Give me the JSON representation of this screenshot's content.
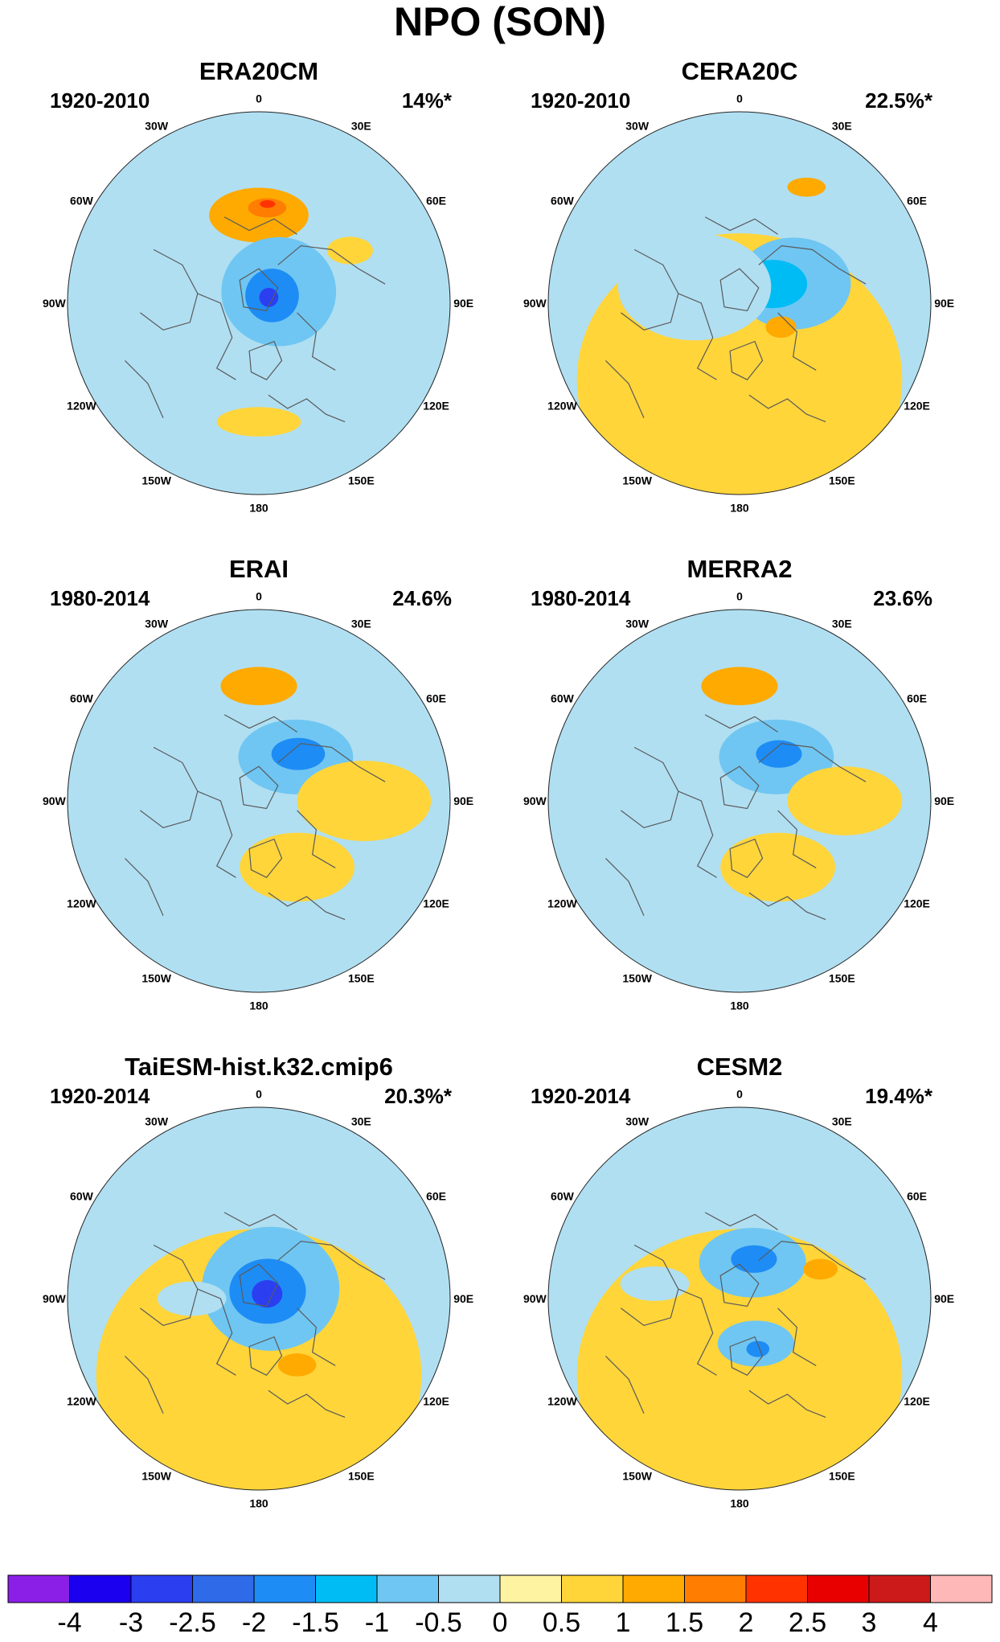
{
  "figure": {
    "title": "NPO (SON)"
  },
  "longitude_labels": [
    "180",
    "150E",
    "120E",
    "90E",
    "60E",
    "30E",
    "0",
    "30W",
    "60W",
    "90W",
    "120W",
    "150W"
  ],
  "colors": {
    "coast": "#5a5a5a",
    "outline": "#222222"
  },
  "panels": [
    {
      "title": "ERA20CM",
      "period": "1920-2010",
      "variance": "14%*",
      "features": [
        {
          "lon": 180,
          "r": 0.46,
          "level": 2,
          "size": 0.26,
          "ratio": 0.55
        },
        {
          "lon": 175,
          "r": 0.5,
          "level": 3,
          "size": 0.1,
          "ratio": 0.5
        },
        {
          "lon": 175,
          "r": 0.52,
          "level": 4,
          "size": 0.04,
          "ratio": 0.5
        },
        {
          "lon": 120,
          "r": 0.12,
          "level": -2,
          "size": 0.3,
          "ratio": 0.95
        },
        {
          "lon": 120,
          "r": 0.08,
          "level": -4,
          "size": 0.14,
          "ratio": 1.0
        },
        {
          "lon": 120,
          "r": 0.06,
          "level": -6,
          "size": 0.05,
          "ratio": 1.0
        },
        {
          "lon": 0,
          "r": 0.62,
          "level": 1,
          "size": 0.22,
          "ratio": 0.35
        },
        {
          "lon": 120,
          "r": 0.55,
          "level": 1,
          "size": 0.12,
          "ratio": 0.6
        }
      ]
    },
    {
      "title": "CERA20C",
      "period": "1920-2010",
      "variance": "22.5%*",
      "features": [
        {
          "lon": 0,
          "r": 0.4,
          "level": 1,
          "size": 0.85,
          "ratio": 0.9
        },
        {
          "lon": 150,
          "r": 0.7,
          "level": 2,
          "size": 0.1,
          "ratio": 0.5
        },
        {
          "lon": 110,
          "r": 0.3,
          "level": -2,
          "size": 0.3,
          "ratio": 0.8
        },
        {
          "lon": 120,
          "r": 0.2,
          "level": -3,
          "size": 0.18,
          "ratio": 0.7
        },
        {
          "lon": 60,
          "r": 0.25,
          "level": 2,
          "size": 0.08,
          "ratio": 0.7
        },
        {
          "lon": 250,
          "r": 0.25,
          "level": -1,
          "size": 0.4,
          "ratio": 0.7
        }
      ]
    },
    {
      "title": "ERAI",
      "period": "1980-2014",
      "variance": "24.6%",
      "features": [
        {
          "lon": 180,
          "r": 0.6,
          "level": 2,
          "size": 0.2,
          "ratio": 0.5
        },
        {
          "lon": 140,
          "r": 0.3,
          "level": -2,
          "size": 0.3,
          "ratio": 0.65
        },
        {
          "lon": 140,
          "r": 0.32,
          "level": -4,
          "size": 0.14,
          "ratio": 0.6
        },
        {
          "lon": 20,
          "r": 0.35,
          "level": 2,
          "size": 0.1,
          "ratio": 0.8
        },
        {
          "lon": 30,
          "r": 0.4,
          "level": 1,
          "size": 0.3,
          "ratio": 0.6
        },
        {
          "lon": 90,
          "r": 0.55,
          "level": 1,
          "size": 0.35,
          "ratio": 0.6
        }
      ]
    },
    {
      "title": "MERRA2",
      "period": "1980-2014",
      "variance": "23.6%",
      "features": [
        {
          "lon": 180,
          "r": 0.6,
          "level": 2,
          "size": 0.2,
          "ratio": 0.5
        },
        {
          "lon": 140,
          "r": 0.3,
          "level": -2,
          "size": 0.3,
          "ratio": 0.65
        },
        {
          "lon": 140,
          "r": 0.32,
          "level": -4,
          "size": 0.12,
          "ratio": 0.6
        },
        {
          "lon": 20,
          "r": 0.35,
          "level": 2,
          "size": 0.1,
          "ratio": 0.8
        },
        {
          "lon": 30,
          "r": 0.4,
          "level": 1,
          "size": 0.3,
          "ratio": 0.6
        },
        {
          "lon": 90,
          "r": 0.45,
          "level": 2,
          "size": 0.06,
          "ratio": 0.6
        },
        {
          "lon": 90,
          "r": 0.55,
          "level": 1,
          "size": 0.3,
          "ratio": 0.6
        }
      ]
    },
    {
      "title": "TaiESM-hist.k32.cmip6",
      "period": "1920-2014",
      "variance": "20.3%*",
      "features": [
        {
          "lon": 0,
          "r": 0.4,
          "level": 1,
          "size": 0.85,
          "ratio": 0.9
        },
        {
          "lon": 130,
          "r": 0.08,
          "level": -2,
          "size": 0.36,
          "ratio": 0.9
        },
        {
          "lon": 130,
          "r": 0.06,
          "level": -4,
          "size": 0.2,
          "ratio": 0.85
        },
        {
          "lon": 120,
          "r": 0.05,
          "level": -6,
          "size": 0.08,
          "ratio": 0.9
        },
        {
          "lon": 30,
          "r": 0.4,
          "level": 2,
          "size": 0.1,
          "ratio": 0.6
        },
        {
          "lon": 270,
          "r": 0.35,
          "level": -1,
          "size": 0.18,
          "ratio": 0.5
        }
      ]
    },
    {
      "title": "CESM2",
      "period": "1920-2014",
      "variance": "19.4%*",
      "features": [
        {
          "lon": 0,
          "r": 0.4,
          "level": 1,
          "size": 0.85,
          "ratio": 0.9
        },
        {
          "lon": 160,
          "r": 0.2,
          "level": -2,
          "size": 0.28,
          "ratio": 0.65
        },
        {
          "lon": 160,
          "r": 0.22,
          "level": -4,
          "size": 0.12,
          "ratio": 0.6
        },
        {
          "lon": 20,
          "r": 0.25,
          "level": -2,
          "size": 0.2,
          "ratio": 0.6
        },
        {
          "lon": 20,
          "r": 0.28,
          "level": -4,
          "size": 0.06,
          "ratio": 0.7
        },
        {
          "lon": 110,
          "r": 0.45,
          "level": 2,
          "size": 0.09,
          "ratio": 0.6
        },
        {
          "lon": 260,
          "r": 0.45,
          "level": -1,
          "size": 0.18,
          "ratio": 0.5
        }
      ]
    }
  ],
  "colorbar": {
    "labels": [
      "-4",
      "-3",
      "-2.5",
      "-2",
      "-1.5",
      "-1",
      "-0.5",
      "0",
      "0.5",
      "1",
      "1.5",
      "2",
      "2.5",
      "3",
      "4"
    ],
    "colors": [
      "#8b1fe8",
      "#1a00ee",
      "#2b3ff0",
      "#2f6ae8",
      "#1e8cf5",
      "#00bcf5",
      "#6fc6f2",
      "#b0dff2",
      "#fdf3a1",
      "#ffd53a",
      "#ffaa00",
      "#ff7d00",
      "#ff3200",
      "#e80000",
      "#cc1a1a",
      "#ffb8b8"
    ]
  }
}
